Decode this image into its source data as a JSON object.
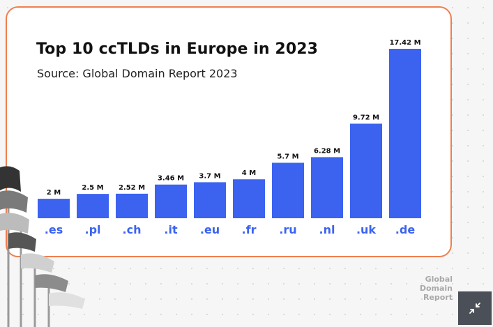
{
  "chart_data": {
    "type": "bar",
    "title": "Top 10 ccTLDs in Europe in 2023",
    "subtitle": "Source: Global Domain Report 2023",
    "categories": [
      ".es",
      ".pl",
      ".ch",
      ".it",
      ".eu",
      ".fr",
      ".ru",
      ".nl",
      ".uk",
      ".de"
    ],
    "values": [
      2,
      2.5,
      2.52,
      3.46,
      3.7,
      4,
      5.7,
      6.28,
      9.72,
      17.42
    ],
    "value_labels": [
      "2 M",
      "2.5 M",
      "2.52 M",
      "3.46 M",
      "3.7 M",
      "4 M",
      "5.7 M",
      "6.28 M",
      "9.72 M",
      "17.42 M"
    ],
    "unit": "M",
    "ylim": [
      0,
      17.42
    ],
    "bar_color": "#3b63f0",
    "category_color": "#3b63f0",
    "grid": false,
    "legend": "none"
  },
  "watermark": {
    "lines": [
      "Global",
      "Domain",
      "Report"
    ]
  },
  "controls": {
    "expand_icon": "collapse-arrows-icon"
  },
  "colors": {
    "card_border": "#ef7f4f",
    "button_bg": "#4b4f57"
  }
}
